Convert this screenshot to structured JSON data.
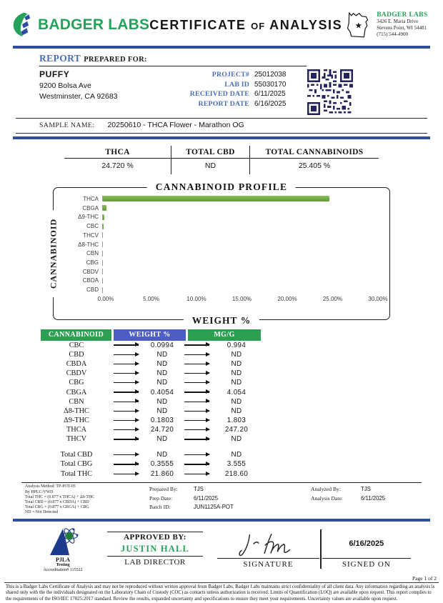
{
  "header": {
    "brand": "BADGER LABS",
    "title_part1": "CERTIFICATE",
    "title_part2": "OF",
    "title_part3": "ANALYSIS",
    "lab_info": {
      "name": "BADGER LABS",
      "address1": "3426 E. Maria Drive",
      "address2": "Stevens Point, WI 54481",
      "phone": "(715) 544-4900"
    }
  },
  "report": {
    "prepared_word": "REPORT",
    "prepared_rest": "PREPARED FOR:",
    "client": {
      "name": "PUFFY",
      "address1": "9200 Bolsa Ave",
      "address2": "Westminster, CA  92683"
    },
    "meta": [
      {
        "label": "PROJECT#",
        "value": "25012038"
      },
      {
        "label": "LAB ID",
        "value": "55030170"
      },
      {
        "label": "RECEIVED DATE",
        "value": "6/11/2025"
      },
      {
        "label": "REPORT DATE",
        "value": "6/16/2025"
      }
    ],
    "sample_name_label": "SAMPLE NAME:",
    "sample_name": "20250610 - THCA Flower - Marathon OG"
  },
  "summary": {
    "columns": [
      {
        "label": "THCA",
        "value": "24.720 %"
      },
      {
        "label": "TOTAL CBD",
        "value": "ND"
      },
      {
        "label": "TOTAL CANNABINOIDS",
        "value": "25.405 %"
      }
    ]
  },
  "chart_data": {
    "type": "bar",
    "orientation": "horizontal",
    "title": "CANNABINOID PROFILE",
    "xlabel": "WEIGHT %",
    "ylabel": "CANNABINOID",
    "categories": [
      "THCA",
      "CBGA",
      "Δ9-THC",
      "CBC",
      "THCV",
      "Δ8-THC",
      "CBN",
      "CBG",
      "CBDV",
      "CBDA",
      "CBD"
    ],
    "values": [
      24.72,
      0.4054,
      0.1803,
      0.0994,
      0,
      0,
      0,
      0,
      0,
      0,
      0
    ],
    "xlim": [
      0,
      30
    ],
    "xticks": [
      "0.00%",
      "5.00%",
      "10.00%",
      "15.00%",
      "20.00%",
      "25.00%",
      "30.00%"
    ],
    "bar_color": "#6fa544",
    "grid": false,
    "legend": false
  },
  "results_table": {
    "headers": [
      "CANNABINOID",
      "WEIGHT %",
      "MG/G"
    ],
    "rows": [
      {
        "name": "CBC",
        "weight": "0.0994",
        "mgg": "0.994"
      },
      {
        "name": "CBD",
        "weight": "ND",
        "mgg": "ND"
      },
      {
        "name": "CBDA",
        "weight": "ND",
        "mgg": "ND"
      },
      {
        "name": "CBDV",
        "weight": "ND",
        "mgg": "ND"
      },
      {
        "name": "CBG",
        "weight": "ND",
        "mgg": "ND"
      },
      {
        "name": "CBGA",
        "weight": "0.4054",
        "mgg": "4.054"
      },
      {
        "name": "CBN",
        "weight": "ND",
        "mgg": "ND"
      },
      {
        "name": "Δ8-THC",
        "weight": "ND",
        "mgg": "ND"
      },
      {
        "name": "Δ9-THC",
        "weight": "0.1803",
        "mgg": "1.803"
      },
      {
        "name": "THCA",
        "weight": "24.720",
        "mgg": "247.20"
      },
      {
        "name": "THCV",
        "weight": "ND",
        "mgg": "ND"
      }
    ],
    "totals": [
      {
        "name": "Total CBD",
        "weight": "ND",
        "mgg": "ND"
      },
      {
        "name": "Total CBG",
        "weight": "0.3555",
        "mgg": "3.555"
      },
      {
        "name": "Total THC",
        "weight": "21.860",
        "mgg": "218.60"
      }
    ]
  },
  "analysis_notes": {
    "lines": [
      "Analysis Method: TP-POT-05",
      "By HPLC-VWD",
      "Total THC = (0.877 x  THCA) + Δ9-THC",
      "Total CBD = (0.877 x  CBDA) + CBD",
      "Total CBG = (0.877 x  CBGA) + CBG",
      "ND = Not Detected"
    ],
    "prepared_by_label": "Prepared By:",
    "prepared_by": "TJS",
    "prep_date_label": "Prep Date:",
    "prep_date": "6/11/2025",
    "batch_id_label": "Batch ID:",
    "batch_id": "JUN1125A-POT",
    "analyzed_by_label": "Analyzed By:",
    "analyzed_by": "TJS",
    "analysis_date_label": "Analysis Date:",
    "analysis_date": "6/11/2025"
  },
  "approval": {
    "accreditation_org": "PJLA",
    "accreditation_sub": "Testing",
    "accreditation_num": "Accreditation# 115522",
    "approved_by_label": "APPROVED BY:",
    "approver": "JUSTIN HALL",
    "approver_title": "LAB DIRECTOR",
    "signature_label": "SIGNATURE",
    "signed_on_date": "6/16/2025",
    "signed_on_label": "SIGNED ON"
  },
  "footer": {
    "page": "Page 1 of 2",
    "disclaimer": "This is a Badger Labs Certificate of Analysis and may not be reproduced without written approval from Badger Labs. Badger Labs maintains strict confidentiality of all client data. Any information regarding an analysis is shared only with the the individuals designated on the Laboratory Chain of Custody (COC) as contacts unless authorization is received. Limits of Quantification (LOQ) are available upon request. This report complies to the requirements of the ISO/IEC 17025:2017 standard. Review the results, expanded uncertainty and specifications to ensure they meet your requirements. Uncertainty values are available upon request."
  },
  "colors": {
    "brand_green": "#23a35a",
    "divider_blue": "#2e4f9e",
    "label_blue": "#4a6db8",
    "table_header_green": "#2e9e52",
    "table_header_blue": "#4c5ec1",
    "bar_green": "#6fa544"
  }
}
